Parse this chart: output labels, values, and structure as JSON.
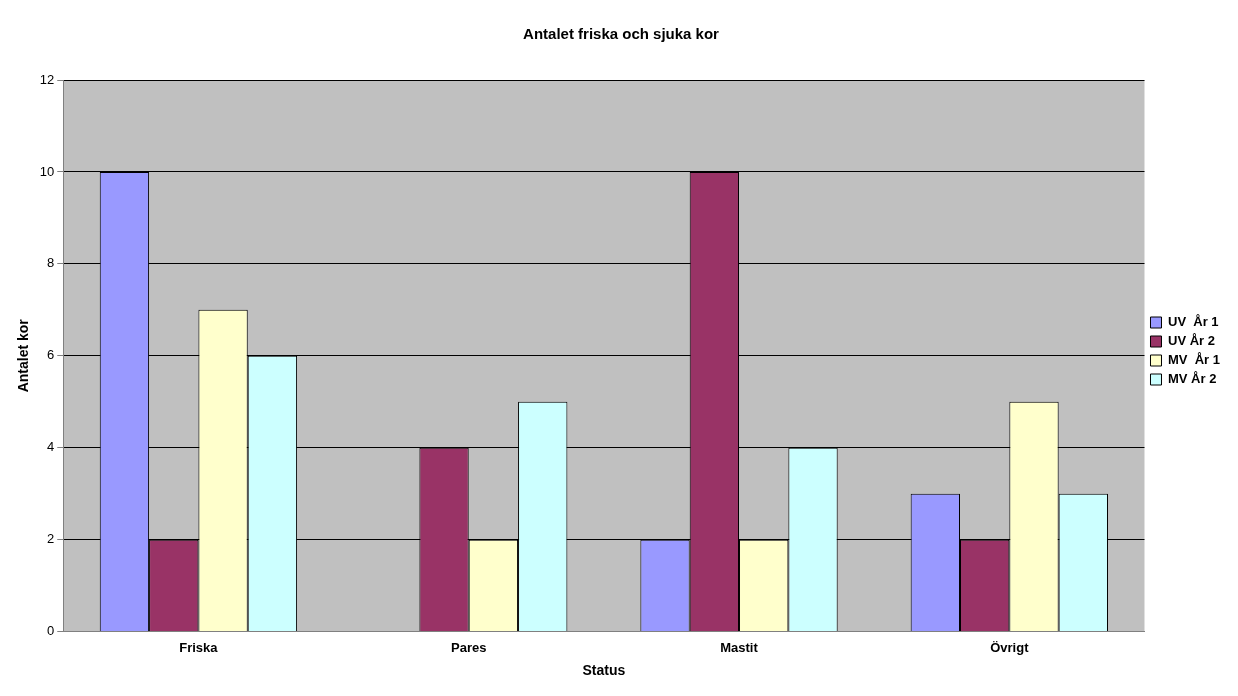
{
  "chart_data": {
    "type": "bar",
    "title": "Antalet friska och sjuka kor",
    "xlabel": "Status",
    "ylabel": "Antalet kor",
    "categories": [
      "Friska",
      "Pares",
      "Mastit",
      "Övrigt"
    ],
    "series": [
      {
        "name": "UV  År 1",
        "color": "#9999ff",
        "values": [
          10,
          0,
          2,
          3
        ]
      },
      {
        "name": "UV År 2",
        "color": "#993366",
        "values": [
          2,
          4,
          10,
          2
        ]
      },
      {
        "name": "MV  År 1",
        "color": "#ffffcc",
        "values": [
          7,
          2,
          2,
          5
        ]
      },
      {
        "name": "MV År 2",
        "color": "#ccffff",
        "values": [
          6,
          5,
          4,
          3
        ]
      }
    ],
    "ylim": [
      0,
      12
    ],
    "yticks": [
      0,
      2,
      4,
      6,
      8,
      10,
      12
    ],
    "grid": "y",
    "legend": "right"
  }
}
